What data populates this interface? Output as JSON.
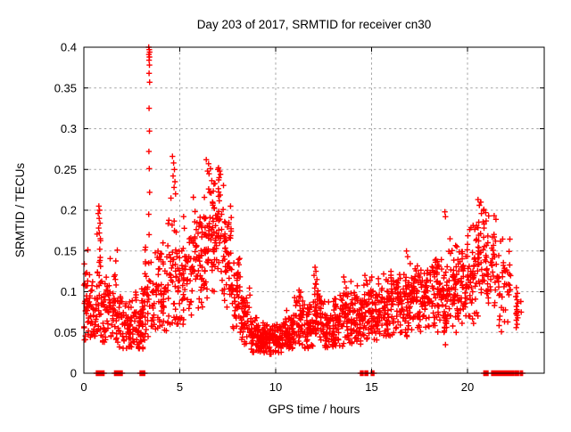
{
  "window": {
    "title": "Day 203 of 2017, SRMTID for receiver cn30"
  },
  "chart_data": {
    "type": "scatter",
    "title": "Day 203 of 2017, SRMTID for receiver cn30",
    "xlabel": "GPS time / hours",
    "ylabel": "SRMTID / TECUs",
    "xlim": [
      0,
      24
    ],
    "ylim": [
      0,
      0.4
    ],
    "xticks": [
      0,
      5,
      10,
      15,
      20
    ],
    "xtick_labels": [
      "0",
      "5",
      "10",
      "15",
      "20"
    ],
    "yticks": [
      0,
      0.05,
      0.1,
      0.15,
      0.2,
      0.25,
      0.3,
      0.35,
      0.4
    ],
    "ytick_labels": [
      "0",
      "0.05",
      "0.1",
      "0.15",
      "0.2",
      "0.25",
      "0.3",
      "0.35",
      "0.4"
    ],
    "grid": true,
    "grid_color": "#a6a6a6",
    "legend": "none",
    "marker": "plus",
    "marker_color": "#ff0000",
    "axis_color": "#000000",
    "series_name": "SRMTID",
    "seed": 42,
    "point_bands": [
      [
        0.0,
        0.3,
        34,
        0.085,
        0.05,
        0.04,
        0.175
      ],
      [
        0.3,
        0.62,
        30,
        0.07,
        0.04,
        0.04,
        0.13
      ],
      [
        0.62,
        0.95,
        38,
        0.09,
        0.06,
        0.04,
        0.185
      ],
      [
        0.95,
        1.3,
        34,
        0.07,
        0.04,
        0.035,
        0.13
      ],
      [
        1.3,
        1.75,
        40,
        0.08,
        0.05,
        0.04,
        0.16
      ],
      [
        1.75,
        2.2,
        36,
        0.06,
        0.035,
        0.03,
        0.11
      ],
      [
        2.2,
        2.7,
        42,
        0.055,
        0.03,
        0.028,
        0.1
      ],
      [
        2.7,
        3.1,
        55,
        0.06,
        0.035,
        0.03,
        0.12
      ],
      [
        3.1,
        3.5,
        32,
        0.085,
        0.05,
        0.04,
        0.155
      ],
      [
        3.5,
        3.95,
        36,
        0.09,
        0.05,
        0.05,
        0.16
      ],
      [
        3.95,
        4.35,
        36,
        0.1,
        0.05,
        0.05,
        0.18
      ],
      [
        4.35,
        4.8,
        38,
        0.13,
        0.065,
        0.06,
        0.23
      ],
      [
        4.8,
        5.2,
        36,
        0.11,
        0.055,
        0.06,
        0.2
      ],
      [
        5.2,
        5.7,
        42,
        0.13,
        0.055,
        0.07,
        0.215
      ],
      [
        5.7,
        6.2,
        46,
        0.15,
        0.06,
        0.08,
        0.24
      ],
      [
        6.2,
        6.7,
        52,
        0.165,
        0.06,
        0.09,
        0.25
      ],
      [
        6.7,
        7.3,
        62,
        0.17,
        0.055,
        0.1,
        0.25
      ],
      [
        7.3,
        7.7,
        46,
        0.14,
        0.05,
        0.08,
        0.205
      ],
      [
        7.7,
        8.2,
        46,
        0.1,
        0.045,
        0.05,
        0.155
      ],
      [
        8.2,
        8.7,
        46,
        0.065,
        0.03,
        0.035,
        0.105
      ],
      [
        8.7,
        9.2,
        56,
        0.045,
        0.02,
        0.025,
        0.075
      ],
      [
        9.2,
        9.8,
        66,
        0.04,
        0.015,
        0.022,
        0.068
      ],
      [
        9.8,
        10.4,
        66,
        0.042,
        0.016,
        0.025,
        0.072
      ],
      [
        10.4,
        10.9,
        56,
        0.05,
        0.02,
        0.03,
        0.088
      ],
      [
        10.9,
        11.5,
        52,
        0.065,
        0.028,
        0.035,
        0.105
      ],
      [
        11.5,
        12.0,
        50,
        0.055,
        0.025,
        0.03,
        0.092
      ],
      [
        12.0,
        12.4,
        46,
        0.07,
        0.032,
        0.035,
        0.125
      ],
      [
        12.4,
        13.0,
        56,
        0.055,
        0.025,
        0.03,
        0.098
      ],
      [
        13.0,
        13.5,
        52,
        0.06,
        0.028,
        0.033,
        0.105
      ],
      [
        13.5,
        14.0,
        52,
        0.07,
        0.032,
        0.035,
        0.12
      ],
      [
        14.0,
        14.5,
        50,
        0.065,
        0.03,
        0.035,
        0.112
      ],
      [
        14.5,
        15.0,
        50,
        0.075,
        0.03,
        0.04,
        0.115
      ],
      [
        15.0,
        15.5,
        50,
        0.075,
        0.03,
        0.04,
        0.118
      ],
      [
        15.5,
        16.0,
        50,
        0.08,
        0.03,
        0.045,
        0.122
      ],
      [
        16.0,
        16.5,
        50,
        0.08,
        0.032,
        0.045,
        0.128
      ],
      [
        16.5,
        17.0,
        50,
        0.085,
        0.034,
        0.045,
        0.148
      ],
      [
        17.0,
        17.5,
        50,
        0.09,
        0.034,
        0.05,
        0.148
      ],
      [
        17.5,
        18.0,
        50,
        0.095,
        0.035,
        0.05,
        0.158
      ],
      [
        18.0,
        18.5,
        50,
        0.1,
        0.038,
        0.05,
        0.168
      ],
      [
        18.5,
        19.0,
        50,
        0.1,
        0.04,
        0.035,
        0.172
      ],
      [
        19.0,
        19.5,
        50,
        0.108,
        0.042,
        0.05,
        0.178
      ],
      [
        19.5,
        20.0,
        50,
        0.115,
        0.045,
        0.06,
        0.188
      ],
      [
        20.0,
        20.5,
        46,
        0.12,
        0.05,
        0.06,
        0.198
      ],
      [
        20.5,
        21.0,
        46,
        0.148,
        0.055,
        0.07,
        0.212
      ],
      [
        21.0,
        21.5,
        40,
        0.13,
        0.05,
        0.06,
        0.198
      ],
      [
        21.5,
        22.25,
        44,
        0.105,
        0.045,
        0.05,
        0.165
      ]
    ],
    "extra_points": [
      [
        3.38,
        0.4
      ],
      [
        3.41,
        0.397
      ],
      [
        3.43,
        0.394
      ],
      [
        3.39,
        0.391
      ],
      [
        3.42,
        0.388
      ],
      [
        3.4,
        0.384
      ],
      [
        3.42,
        0.378
      ],
      [
        3.4,
        0.368
      ],
      [
        3.43,
        0.357
      ],
      [
        3.4,
        0.325
      ],
      [
        3.42,
        0.297
      ],
      [
        3.39,
        0.272
      ],
      [
        3.41,
        0.251
      ],
      [
        3.43,
        0.222
      ],
      [
        3.38,
        0.195
      ],
      [
        3.4,
        0.17
      ],
      [
        0.78,
        0.205
      ],
      [
        0.82,
        0.2
      ],
      [
        0.75,
        0.196
      ],
      [
        0.8,
        0.19
      ],
      [
        0.84,
        0.184
      ],
      [
        0.77,
        0.178
      ],
      [
        0.81,
        0.172
      ],
      [
        4.62,
        0.266
      ],
      [
        4.68,
        0.258
      ],
      [
        4.72,
        0.25
      ],
      [
        4.65,
        0.242
      ],
      [
        4.75,
        0.235
      ],
      [
        4.7,
        0.228
      ],
      [
        4.78,
        0.22
      ],
      [
        6.38,
        0.262
      ],
      [
        6.5,
        0.257
      ],
      [
        6.6,
        0.251
      ],
      [
        6.45,
        0.248
      ],
      [
        7.02,
        0.252
      ],
      [
        7.08,
        0.248
      ],
      [
        7.12,
        0.244
      ],
      [
        7.05,
        0.24
      ],
      [
        12.05,
        0.13
      ],
      [
        12.1,
        0.125
      ],
      [
        12.0,
        0.12
      ],
      [
        12.15,
        0.115
      ],
      [
        12.08,
        0.11
      ],
      [
        13.55,
        0.118
      ],
      [
        13.6,
        0.112
      ],
      [
        14.65,
        0.12
      ],
      [
        14.72,
        0.114
      ],
      [
        14.6,
        0.108
      ],
      [
        16.82,
        0.15
      ],
      [
        16.88,
        0.143
      ],
      [
        18.82,
        0.198
      ],
      [
        18.85,
        0.192
      ],
      [
        18.85,
        0.035
      ],
      [
        20.55,
        0.213
      ],
      [
        20.7,
        0.21
      ],
      [
        20.62,
        0.206
      ],
      [
        20.85,
        0.201
      ],
      [
        20.95,
        0.197
      ],
      [
        21.1,
        0.193
      ],
      [
        22.55,
        0.105
      ],
      [
        22.6,
        0.098
      ],
      [
        22.52,
        0.094
      ],
      [
        22.58,
        0.09
      ],
      [
        22.62,
        0.086
      ],
      [
        22.55,
        0.082
      ],
      [
        22.57,
        0.078
      ],
      [
        22.6,
        0.076
      ],
      [
        22.56,
        0.074
      ],
      [
        22.53,
        0.073
      ],
      [
        22.58,
        0.071
      ],
      [
        22.62,
        0.068
      ],
      [
        22.55,
        0.065
      ],
      [
        22.59,
        0.06
      ],
      [
        22.54,
        0.056
      ],
      [
        22.78,
        0.088
      ],
      [
        22.8,
        0.075
      ]
    ],
    "zero_runs": [
      [
        0.65,
        1.05
      ],
      [
        1.6,
        2.0
      ],
      [
        2.93,
        3.17
      ],
      [
        14.42,
        14.56
      ],
      [
        14.65,
        14.8
      ],
      [
        14.98,
        15.12
      ],
      [
        20.85,
        21.07
      ],
      [
        21.26,
        22.24
      ],
      [
        22.28,
        22.4
      ],
      [
        22.47,
        22.66
      ],
      [
        22.75,
        22.87
      ]
    ]
  }
}
